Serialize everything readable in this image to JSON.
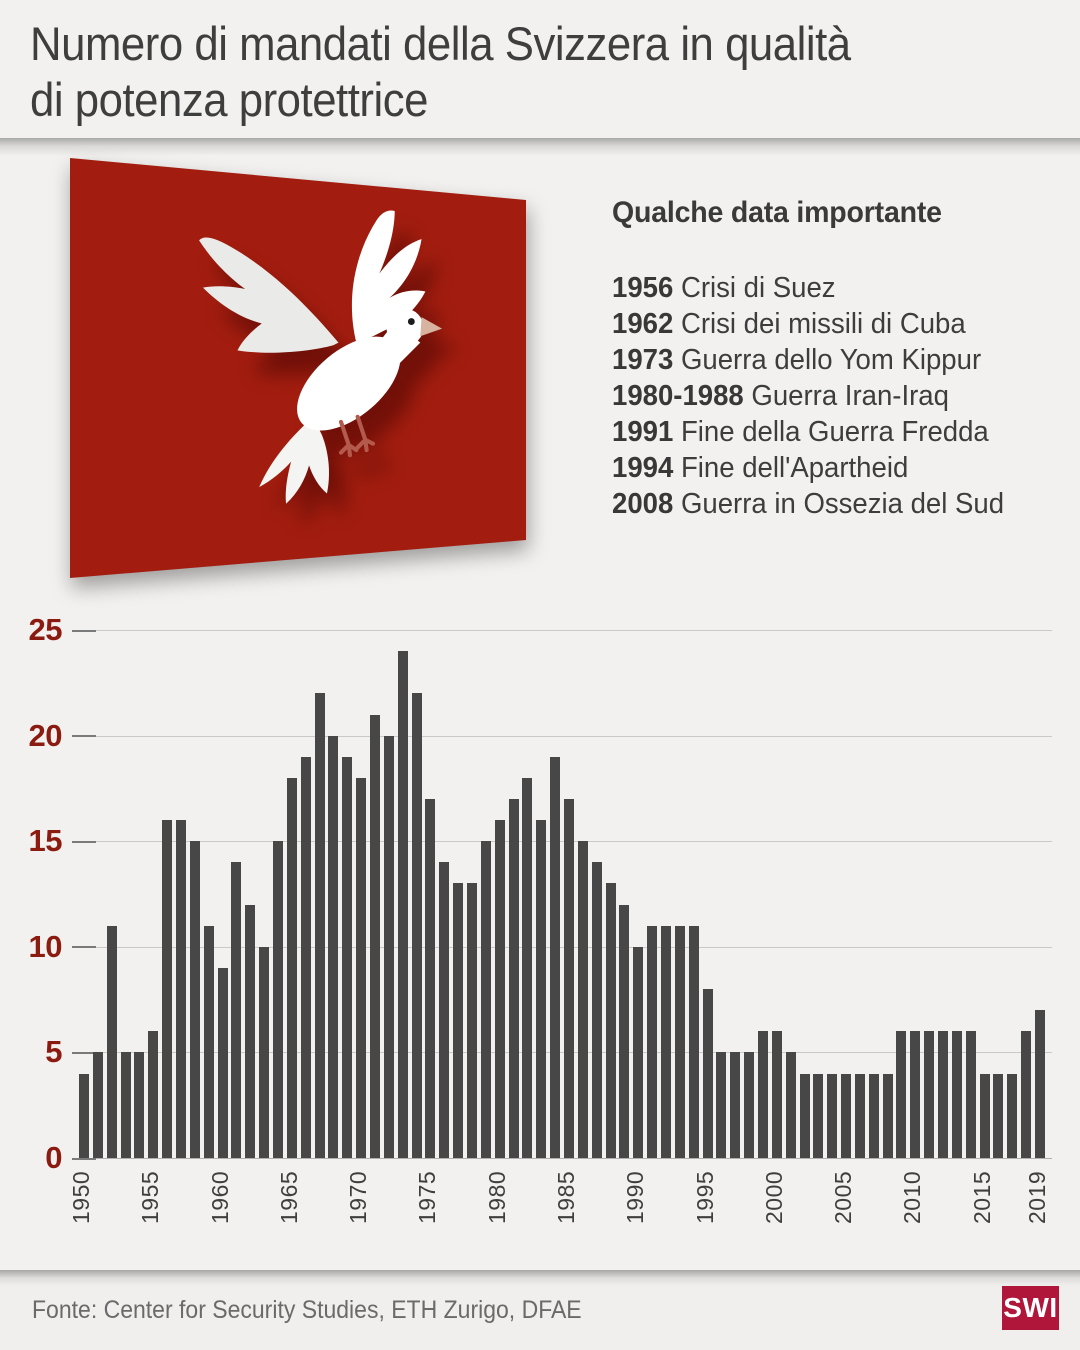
{
  "title": "Numero di mandati della Svizzera in qualità di potenza protettrice",
  "title_lines": [
    "Numero di mandati della Svizzera in qualità",
    "di potenza protettrice"
  ],
  "dove": {
    "alt": "Colomba bianca su sfondo rosso"
  },
  "dates_panel": {
    "heading": "Qualche data importante",
    "items": [
      {
        "year": "1956",
        "event": "Crisi di Suez"
      },
      {
        "year": "1962",
        "event": "Crisi dei missili di Cuba"
      },
      {
        "year": "1973",
        "event": "Guerra dello Yom Kippur"
      },
      {
        "year": "1980-1988",
        "event": "Guerra Iran-Iraq"
      },
      {
        "year": "1991",
        "event": "Fine della Guerra Fredda"
      },
      {
        "year": "1994",
        "event": "Fine dell'Apartheid"
      },
      {
        "year": "2008",
        "event": "Guerra in Ossezia del Sud"
      }
    ]
  },
  "chart_data": {
    "type": "bar",
    "x": [
      1950,
      1951,
      1952,
      1953,
      1954,
      1955,
      1956,
      1957,
      1958,
      1959,
      1960,
      1961,
      1962,
      1963,
      1964,
      1965,
      1966,
      1967,
      1968,
      1969,
      1970,
      1971,
      1972,
      1973,
      1974,
      1975,
      1976,
      1977,
      1978,
      1979,
      1980,
      1981,
      1982,
      1983,
      1984,
      1985,
      1986,
      1987,
      1988,
      1989,
      1990,
      1991,
      1992,
      1993,
      1994,
      1995,
      1996,
      1997,
      1998,
      1999,
      2000,
      2001,
      2002,
      2003,
      2004,
      2005,
      2006,
      2007,
      2008,
      2009,
      2010,
      2011,
      2012,
      2013,
      2014,
      2015,
      2016,
      2017,
      2018,
      2019
    ],
    "values": [
      4,
      5,
      11,
      5,
      5,
      6,
      16,
      16,
      15,
      11,
      9,
      14,
      12,
      10,
      15,
      18,
      19,
      22,
      20,
      19,
      18,
      21,
      20,
      24,
      22,
      17,
      14,
      13,
      13,
      15,
      16,
      17,
      18,
      16,
      19,
      17,
      15,
      14,
      13,
      12,
      10,
      11,
      11,
      11,
      11,
      8,
      5,
      5,
      5,
      6,
      6,
      5,
      4,
      4,
      4,
      4,
      4,
      4,
      4,
      6,
      6,
      6,
      6,
      6,
      6,
      4,
      4,
      4,
      6,
      7
    ],
    "y_ticks": [
      0,
      5,
      10,
      15,
      20,
      25
    ],
    "x_tick_labels": [
      "1950",
      "1955",
      "1960",
      "1965",
      "1970",
      "1975",
      "1980",
      "1985",
      "1990",
      "1995",
      "2000",
      "2005",
      "2010",
      "2015",
      "2019"
    ],
    "ylim": [
      0,
      25
    ],
    "title": "",
    "xlabel": "",
    "ylabel": "",
    "grid": true,
    "bar_color": "#474747",
    "y_label_color": "#8b1a10"
  },
  "footer": {
    "source": "Fonte: Center for Security Studies, ETH Zurigo, DFAE",
    "logo_text": "SWI"
  },
  "colors": {
    "background": "#f2f1ef",
    "panel_red": "#a21d0f",
    "logo_red": "#b0153a",
    "text_dark": "#3e3e3e",
    "grid_line": "#c9c9c7"
  }
}
